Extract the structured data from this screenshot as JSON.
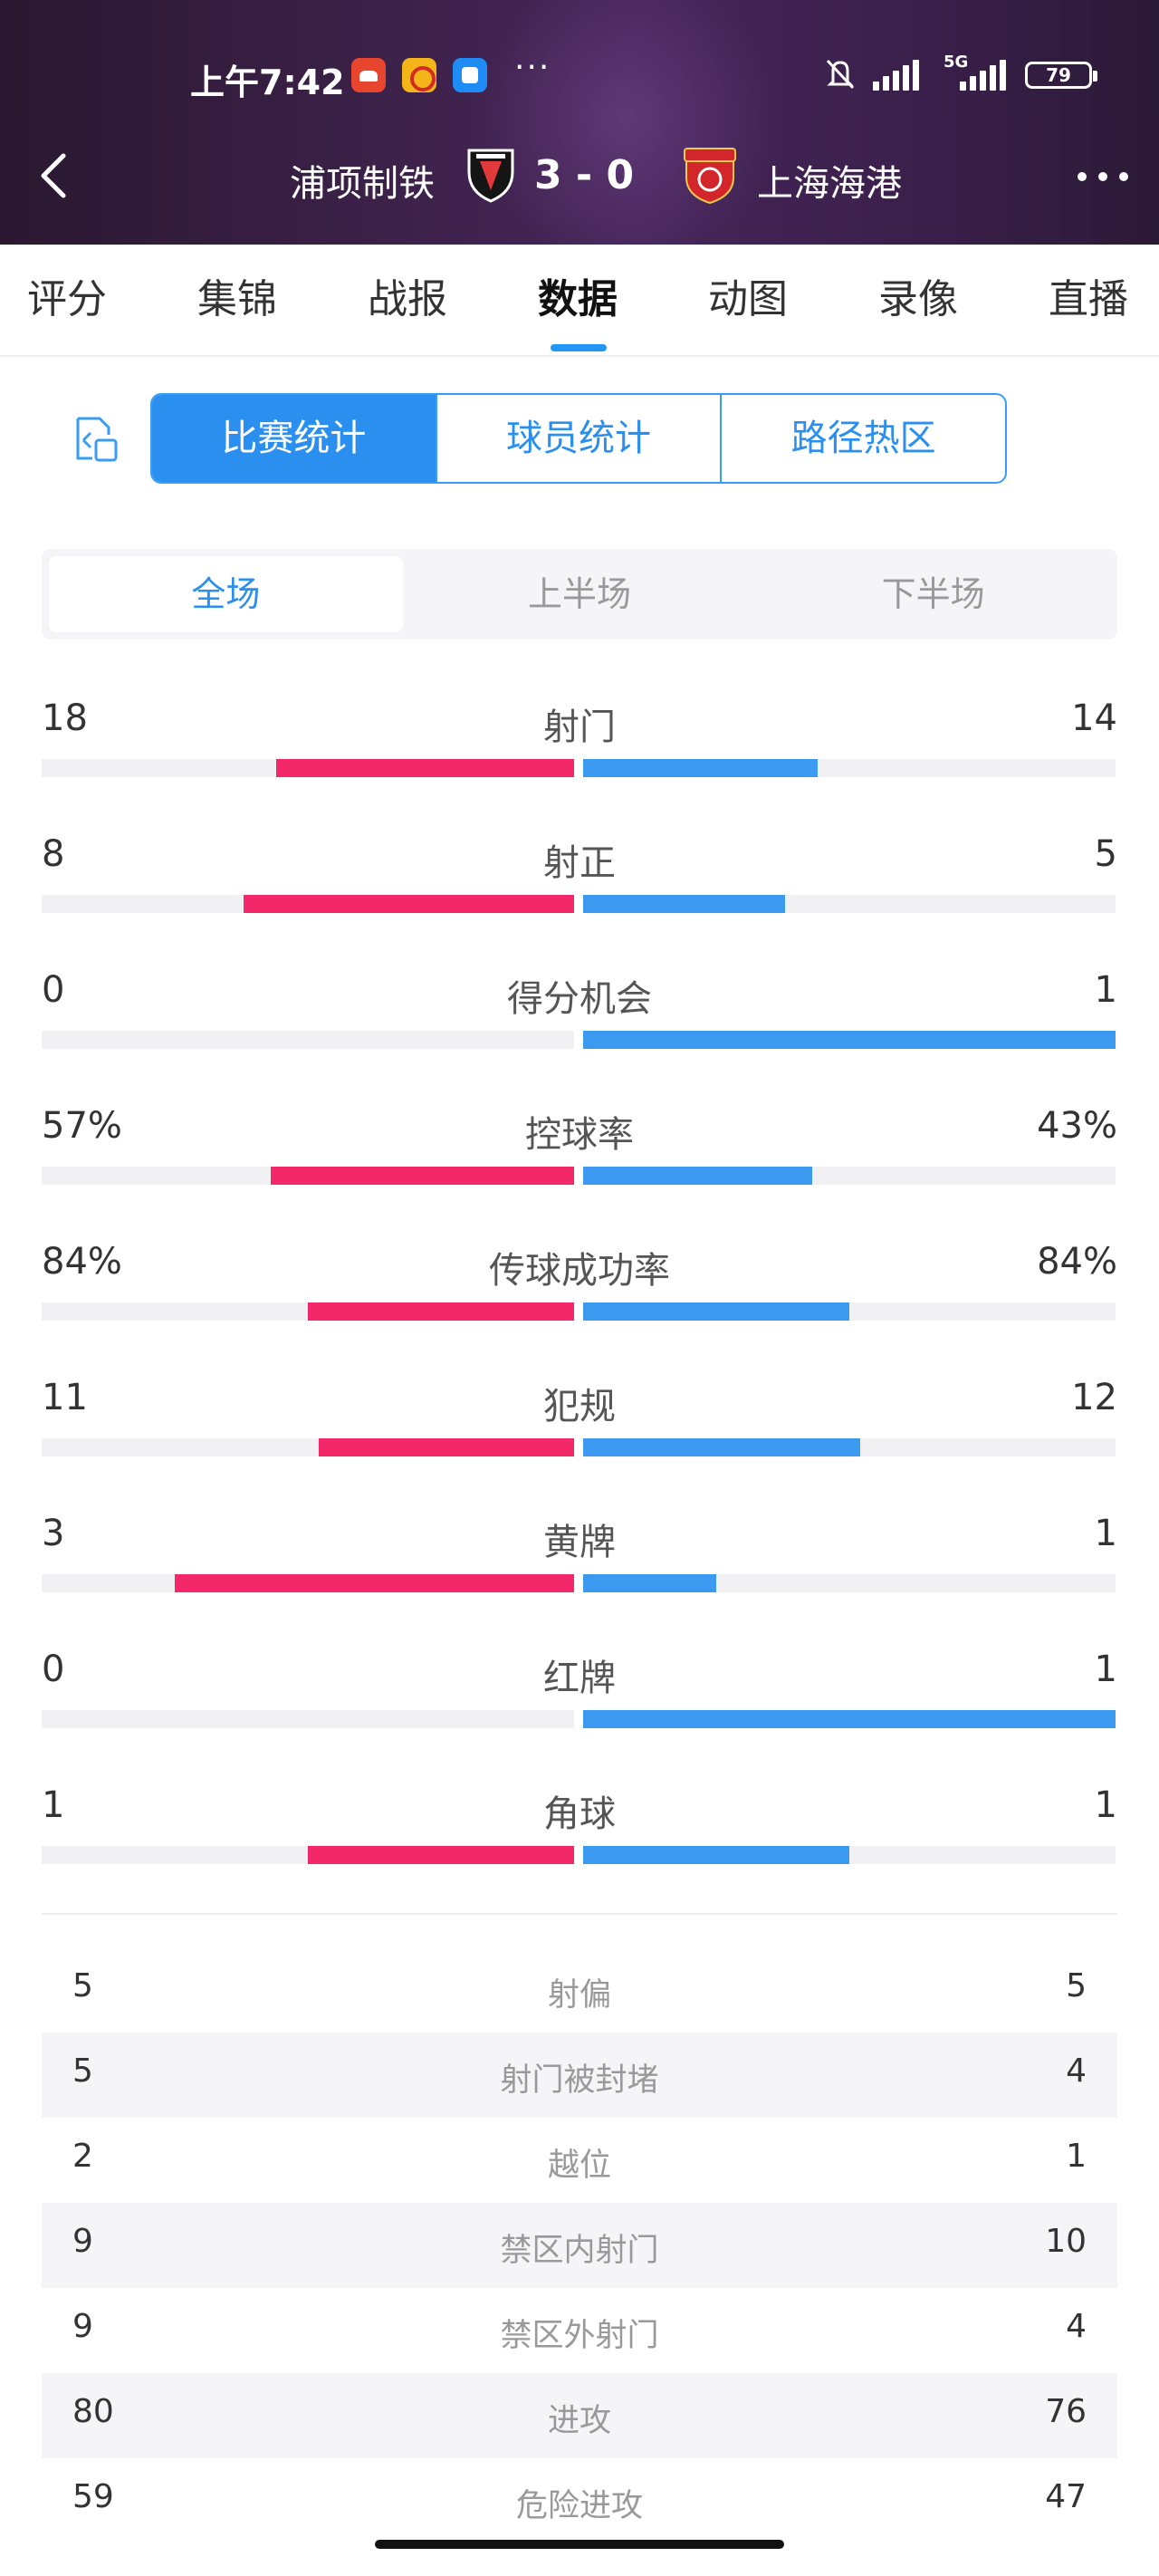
{
  "status_bar": {
    "time": "上午7:42",
    "more": "···",
    "network": "5G",
    "battery": "79"
  },
  "match": {
    "home_team": "浦项制铁",
    "score": "3 - 0",
    "away_team": "上海海港",
    "home_color": "#1a1a1a",
    "away_color": "#d3262a"
  },
  "tabs": [
    {
      "label": "评分"
    },
    {
      "label": "集锦"
    },
    {
      "label": "战报"
    },
    {
      "label": "数据",
      "active": true
    },
    {
      "label": "动图"
    },
    {
      "label": "录像"
    },
    {
      "label": "直播"
    }
  ],
  "segments": [
    {
      "label": "比赛统计",
      "active": true
    },
    {
      "label": "球员统计"
    },
    {
      "label": "路径热区"
    }
  ],
  "periods": [
    {
      "label": "全场",
      "active": true
    },
    {
      "label": "上半场"
    },
    {
      "label": "下半场"
    }
  ],
  "colors": {
    "accent": "#2b8ff0",
    "home_bar": "#f3286a",
    "away_bar": "#3c9bf0"
  },
  "bar_stats": [
    {
      "name": "射门",
      "home": "18",
      "away": "14",
      "home_share": 0.56,
      "away_share": 0.44
    },
    {
      "name": "射正",
      "home": "8",
      "away": "5",
      "home_share": 0.62,
      "away_share": 0.38
    },
    {
      "name": "得分机会",
      "home": "0",
      "away": "1",
      "home_share": 0.0,
      "away_share": 1.0
    },
    {
      "name": "控球率",
      "home": "57%",
      "away": "43%",
      "home_share": 0.57,
      "away_share": 0.43
    },
    {
      "name": "传球成功率",
      "home": "84%",
      "away": "84%",
      "home_share": 0.5,
      "away_share": 0.5
    },
    {
      "name": "犯规",
      "home": "11",
      "away": "12",
      "home_share": 0.48,
      "away_share": 0.52
    },
    {
      "name": "黄牌",
      "home": "3",
      "away": "1",
      "home_share": 0.75,
      "away_share": 0.25
    },
    {
      "name": "红牌",
      "home": "0",
      "away": "1",
      "home_share": 0.0,
      "away_share": 1.0
    },
    {
      "name": "角球",
      "home": "1",
      "away": "1",
      "home_share": 0.5,
      "away_share": 0.5
    }
  ],
  "list_stats": [
    {
      "name": "射偏",
      "home": "5",
      "away": "5"
    },
    {
      "name": "射门被封堵",
      "home": "5",
      "away": "4"
    },
    {
      "name": "越位",
      "home": "2",
      "away": "1"
    },
    {
      "name": "禁区内射门",
      "home": "9",
      "away": "10"
    },
    {
      "name": "禁区外射门",
      "home": "9",
      "away": "4"
    },
    {
      "name": "进攻",
      "home": "80",
      "away": "76"
    },
    {
      "name": "危险进攻",
      "home": "59",
      "away": "47"
    }
  ]
}
